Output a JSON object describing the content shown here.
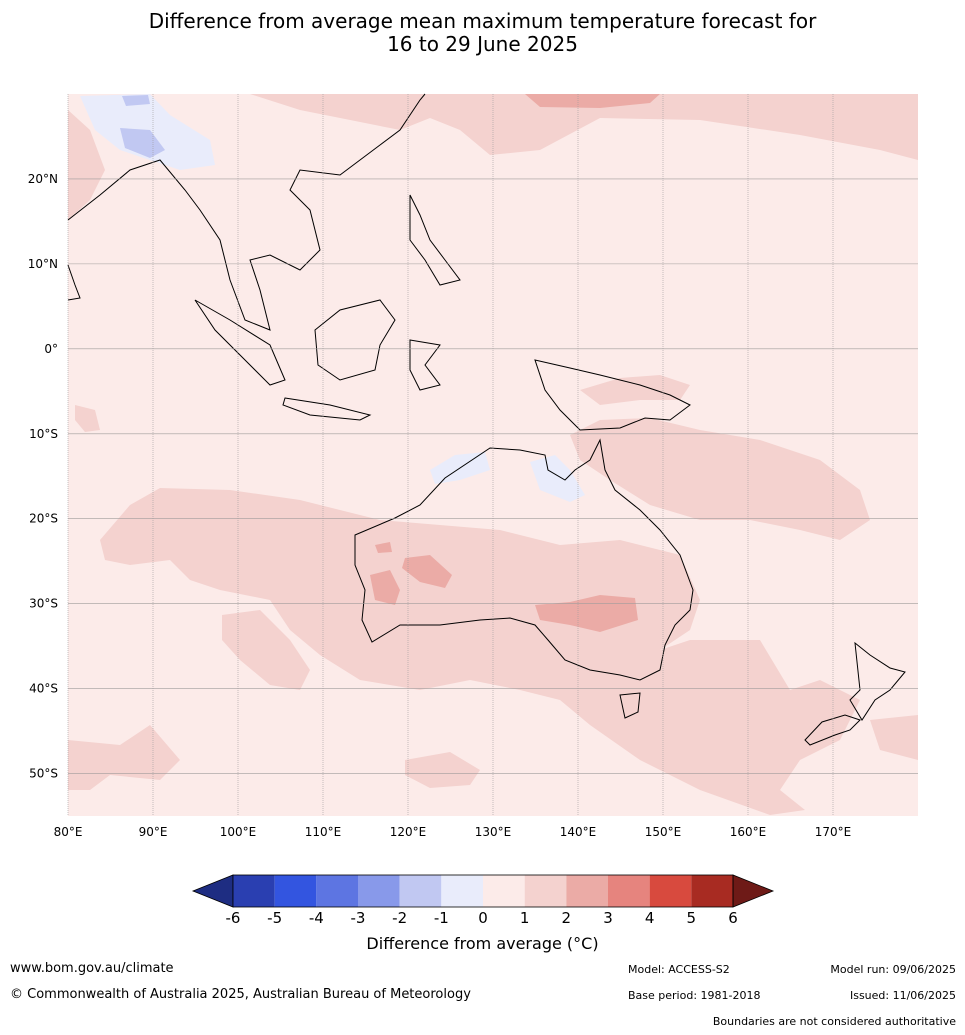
{
  "title": {
    "line1": "Difference from average mean maximum temperature forecast for",
    "line2": "16 to 29 June 2025"
  },
  "map": {
    "lon_range": [
      80,
      180
    ],
    "lat_range": [
      -55,
      30
    ],
    "lat_labels": [
      "20°N",
      "10°N",
      "0°",
      "10°S",
      "20°S",
      "30°S",
      "40°S",
      "50°S"
    ],
    "lat_values": [
      20,
      10,
      0,
      -10,
      -20,
      -30,
      -40,
      -50
    ],
    "lon_labels": [
      "80°E",
      "90°E",
      "100°E",
      "110°E",
      "120°E",
      "130°E",
      "140°E",
      "150°E",
      "160°E",
      "170°E"
    ],
    "lon_values": [
      80,
      90,
      100,
      110,
      120,
      130,
      140,
      150,
      160,
      170
    ],
    "background_class_color": "#fcebe9"
  },
  "colorbar": {
    "ticks": [
      "-6",
      "-5",
      "-4",
      "-3",
      "-2",
      "-1",
      "0",
      "1",
      "2",
      "3",
      "4",
      "5",
      "6"
    ],
    "colors": [
      "#1e2d82",
      "#2a3fb1",
      "#3355e0",
      "#5d75e2",
      "#8899ea",
      "#c1c8f2",
      "#e9ecfb",
      "#fcebe9",
      "#f4d2cf",
      "#ebaba6",
      "#e6847e",
      "#d84a3e",
      "#a82b22",
      "#6e1a17"
    ],
    "label": "Difference from average (°C)"
  },
  "footer": {
    "website": "www.bom.gov.au/climate",
    "copyright": "© Commonwealth of Australia 2025, Australian Bureau of Meteorology",
    "model": "Model: ACCESS-S2",
    "base_period": "Base period: 1981-2018",
    "model_run": "Model run: 09/06/2025",
    "issued": "Issued: 11/06/2025",
    "disclaimer": "Boundaries are not considered authoritative"
  }
}
